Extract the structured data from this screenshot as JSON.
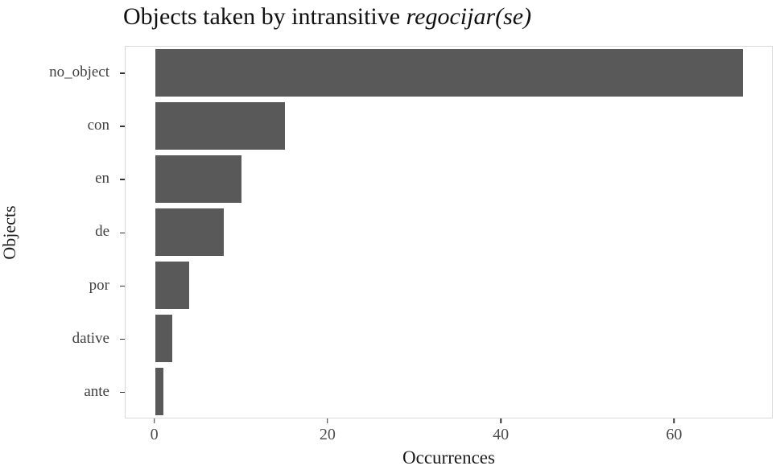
{
  "title": {
    "prefix": "Objects taken by intransitive ",
    "italic": "regocijar(se)"
  },
  "chart_data": {
    "type": "bar",
    "orientation": "horizontal",
    "title": "Objects taken by intransitive regocijar(se)",
    "xlabel": "Occurrences",
    "ylabel": "Objects",
    "categories": [
      "no_object",
      "con",
      "en",
      "de",
      "por",
      "dative",
      "ante"
    ],
    "values": [
      68,
      15,
      10,
      8,
      4,
      2,
      1
    ],
    "x_ticks": [
      0,
      20,
      40,
      60
    ],
    "xlim": [
      -3.4,
      71.4
    ],
    "grid": false,
    "bar_color": "#595959",
    "panel_border_color": "#d9d9d9"
  }
}
